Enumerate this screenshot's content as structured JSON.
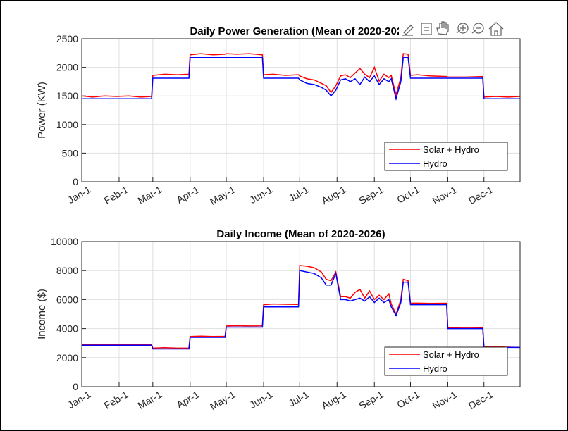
{
  "chart_data": [
    {
      "type": "line",
      "title": "Daily Power Generation (Mean of 2020-2026)",
      "ylabel": "Power (KW)",
      "x": [
        1,
        10,
        20,
        30,
        40,
        50,
        59,
        60,
        70,
        80,
        90,
        91,
        100,
        110,
        120,
        121,
        130,
        140,
        151,
        152,
        160,
        170,
        181,
        182,
        188,
        194,
        200,
        204,
        208,
        212,
        216,
        220,
        224,
        228,
        232,
        236,
        240,
        244,
        248,
        252,
        256,
        258,
        262,
        266,
        268,
        272,
        274,
        280,
        290,
        304,
        305,
        320,
        334,
        335,
        345,
        355,
        365
      ],
      "xlim": [
        1,
        365
      ],
      "xticks": [
        {
          "value": 1,
          "label": "Jan-1"
        },
        {
          "value": 32,
          "label": "Feb-1"
        },
        {
          "value": 60,
          "label": "Mar-1"
        },
        {
          "value": 91,
          "label": "Apr-1"
        },
        {
          "value": 121,
          "label": "May-1"
        },
        {
          "value": 152,
          "label": "Jun-1"
        },
        {
          "value": 182,
          "label": "Jul-1"
        },
        {
          "value": 213,
          "label": "Aug-1"
        },
        {
          "value": 244,
          "label": "Sep-1"
        },
        {
          "value": 274,
          "label": "Oct-1"
        },
        {
          "value": 305,
          "label": "Nov-1"
        },
        {
          "value": 335,
          "label": "Dec-1"
        }
      ],
      "ylim": [
        0,
        2500
      ],
      "yticks": [
        0,
        500,
        1000,
        1500,
        2000,
        2500
      ],
      "grid": true,
      "legend": "lower right",
      "series": [
        {
          "name": "Solar + Hydro",
          "color": "#ff0000",
          "values": [
            1500,
            1480,
            1500,
            1490,
            1500,
            1480,
            1490,
            1860,
            1880,
            1870,
            1880,
            2220,
            2240,
            2220,
            2230,
            2240,
            2230,
            2240,
            2220,
            1870,
            1880,
            1860,
            1870,
            1850,
            1800,
            1780,
            1720,
            1680,
            1560,
            1680,
            1850,
            1870,
            1820,
            1900,
            1980,
            1880,
            1820,
            2000,
            1760,
            1880,
            1820,
            1860,
            1520,
            1820,
            2240,
            2230,
            1860,
            1870,
            1850,
            1840,
            1830,
            1830,
            1840,
            1480,
            1490,
            1480,
            1490
          ]
        },
        {
          "name": "Hydro",
          "color": "#0000ff",
          "values": [
            1450,
            1450,
            1450,
            1450,
            1450,
            1450,
            1450,
            1810,
            1810,
            1810,
            1810,
            2170,
            2170,
            2170,
            2170,
            2170,
            2170,
            2170,
            2170,
            1810,
            1810,
            1810,
            1810,
            1780,
            1720,
            1700,
            1650,
            1600,
            1500,
            1600,
            1780,
            1800,
            1750,
            1800,
            1700,
            1830,
            1750,
            1850,
            1700,
            1800,
            1750,
            1800,
            1450,
            1750,
            2170,
            2170,
            1810,
            1810,
            1810,
            1810,
            1810,
            1810,
            1810,
            1450,
            1450,
            1450,
            1450
          ]
        }
      ]
    },
    {
      "type": "line",
      "title": "Daily Income (Mean of 2020-2026)",
      "ylabel": "Income ($)",
      "x": [
        1,
        10,
        20,
        30,
        40,
        50,
        59,
        60,
        70,
        80,
        90,
        91,
        100,
        110,
        120,
        121,
        130,
        140,
        151,
        152,
        160,
        170,
        181,
        182,
        188,
        194,
        200,
        204,
        208,
        212,
        216,
        220,
        224,
        228,
        232,
        236,
        240,
        244,
        248,
        252,
        256,
        258,
        262,
        266,
        268,
        272,
        274,
        280,
        290,
        304,
        305,
        320,
        334,
        335,
        345,
        355,
        365
      ],
      "xlim": [
        1,
        365
      ],
      "xticks": [
        {
          "value": 1,
          "label": "Jan-1"
        },
        {
          "value": 32,
          "label": "Feb-1"
        },
        {
          "value": 60,
          "label": "Mar-1"
        },
        {
          "value": 91,
          "label": "Apr-1"
        },
        {
          "value": 121,
          "label": "May-1"
        },
        {
          "value": 152,
          "label": "Jun-1"
        },
        {
          "value": 182,
          "label": "Jul-1"
        },
        {
          "value": 213,
          "label": "Aug-1"
        },
        {
          "value": 244,
          "label": "Sep-1"
        },
        {
          "value": 274,
          "label": "Oct-1"
        },
        {
          "value": 305,
          "label": "Nov-1"
        },
        {
          "value": 335,
          "label": "Dec-1"
        }
      ],
      "ylim": [
        0,
        10000
      ],
      "yticks": [
        0,
        2000,
        4000,
        6000,
        8000,
        10000
      ],
      "grid": true,
      "legend": "lower right",
      "series": [
        {
          "name": "Solar + Hydro",
          "color": "#ff0000",
          "values": [
            2900,
            2880,
            2900,
            2890,
            2900,
            2880,
            2900,
            2650,
            2680,
            2650,
            2660,
            3460,
            3480,
            3460,
            3470,
            4180,
            4200,
            4180,
            4190,
            5650,
            5700,
            5680,
            5670,
            8350,
            8300,
            8200,
            7900,
            7400,
            7300,
            7900,
            6200,
            6200,
            6100,
            6500,
            6700,
            6100,
            6600,
            6000,
            6300,
            6000,
            6400,
            5700,
            5000,
            6000,
            7400,
            7300,
            5750,
            5760,
            5740,
            5750,
            4050,
            4080,
            4060,
            2750,
            2740,
            2720,
            2700
          ]
        },
        {
          "name": "Hydro",
          "color": "#0000ff",
          "values": [
            2850,
            2850,
            2850,
            2850,
            2850,
            2850,
            2850,
            2600,
            2600,
            2600,
            2600,
            3400,
            3400,
            3400,
            3400,
            4100,
            4100,
            4100,
            4100,
            5500,
            5500,
            5500,
            5500,
            8000,
            7900,
            7800,
            7500,
            7000,
            7000,
            7800,
            6000,
            6000,
            5900,
            6000,
            6100,
            5900,
            6200,
            5800,
            6100,
            5800,
            6000,
            5500,
            4900,
            5800,
            7200,
            7200,
            5650,
            5650,
            5650,
            5650,
            4000,
            4000,
            4000,
            2700,
            2700,
            2700,
            2700
          ]
        }
      ]
    }
  ]
}
